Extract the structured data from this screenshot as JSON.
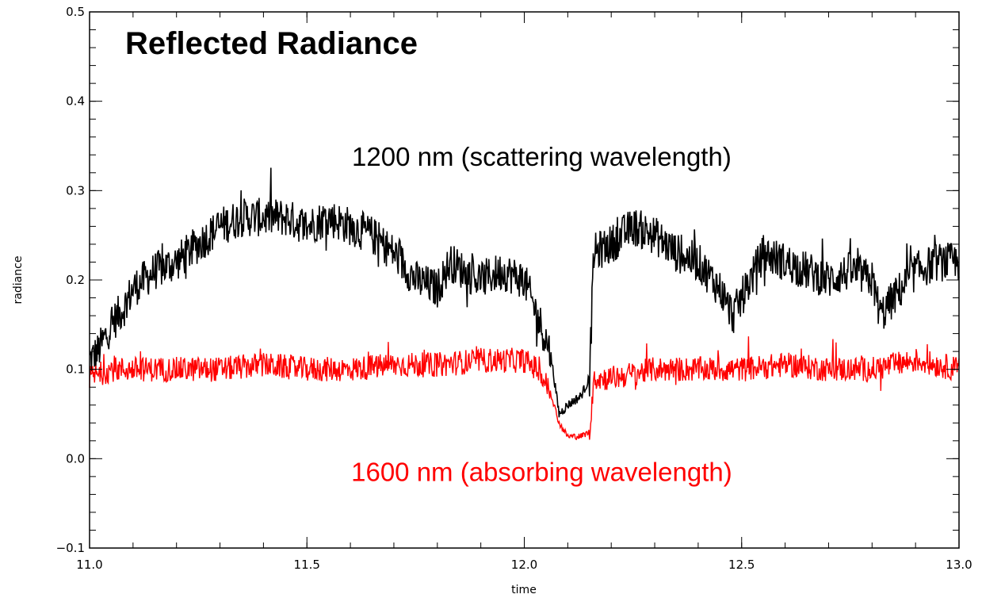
{
  "chart_data": {
    "type": "line",
    "title": "Reflected Radiance",
    "xlabel": "time",
    "ylabel": "radiance",
    "xlim": [
      11.0,
      13.0
    ],
    "ylim": [
      -0.1,
      0.5
    ],
    "x_ticks": [
      "11.0",
      "11.5",
      "12.0",
      "12.5",
      "13.0"
    ],
    "y_ticks": [
      "−0.1",
      "0.0",
      "0.1",
      "0.2",
      "0.3",
      "0.4",
      "0.5"
    ],
    "grid": false,
    "series": [
      {
        "color": "#000000",
        "noise": 0.022,
        "x": [
          11.0,
          11.02,
          11.05,
          11.08,
          11.1,
          11.15,
          11.2,
          11.25,
          11.3,
          11.35,
          11.4,
          11.45,
          11.5,
          11.55,
          11.6,
          11.65,
          11.7,
          11.75,
          11.8,
          11.83,
          11.86,
          11.9,
          11.95,
          12.0,
          12.03,
          12.06,
          12.08,
          12.1,
          12.13,
          12.15,
          12.16,
          12.2,
          12.25,
          12.3,
          12.35,
          12.4,
          12.45,
          12.48,
          12.5,
          12.55,
          12.6,
          12.65,
          12.7,
          12.75,
          12.8,
          12.82,
          12.85,
          12.9,
          12.95,
          13.0
        ],
        "y": [
          0.11,
          0.12,
          0.15,
          0.17,
          0.19,
          0.21,
          0.22,
          0.24,
          0.26,
          0.27,
          0.27,
          0.27,
          0.26,
          0.27,
          0.26,
          0.25,
          0.23,
          0.2,
          0.19,
          0.22,
          0.21,
          0.2,
          0.21,
          0.2,
          0.16,
          0.12,
          0.05,
          0.06,
          0.07,
          0.09,
          0.23,
          0.24,
          0.26,
          0.25,
          0.23,
          0.22,
          0.19,
          0.16,
          0.18,
          0.23,
          0.22,
          0.21,
          0.2,
          0.21,
          0.2,
          0.16,
          0.18,
          0.21,
          0.22,
          0.22
        ]
      },
      {
        "color": "#ff0000",
        "noise": 0.014,
        "x": [
          11.0,
          11.05,
          11.1,
          11.2,
          11.3,
          11.4,
          11.5,
          11.6,
          11.7,
          11.8,
          11.9,
          11.95,
          12.0,
          12.03,
          12.06,
          12.08,
          12.1,
          12.13,
          12.15,
          12.16,
          12.2,
          12.3,
          12.4,
          12.5,
          12.6,
          12.7,
          12.8,
          12.9,
          13.0
        ],
        "y": [
          0.09,
          0.1,
          0.1,
          0.1,
          0.1,
          0.105,
          0.1,
          0.1,
          0.105,
          0.105,
          0.11,
          0.11,
          0.11,
          0.1,
          0.075,
          0.04,
          0.025,
          0.025,
          0.03,
          0.09,
          0.09,
          0.1,
          0.1,
          0.1,
          0.105,
          0.1,
          0.1,
          0.11,
          0.1
        ]
      }
    ],
    "annotations": [
      {
        "text": "1200 nm (scattering wavelength)",
        "color": "#000000",
        "x": 12.04,
        "y": 0.328
      },
      {
        "text": "1600 nm (absorbing wavelength)",
        "color": "#ff0000",
        "x": 12.04,
        "y": -0.025
      }
    ]
  }
}
